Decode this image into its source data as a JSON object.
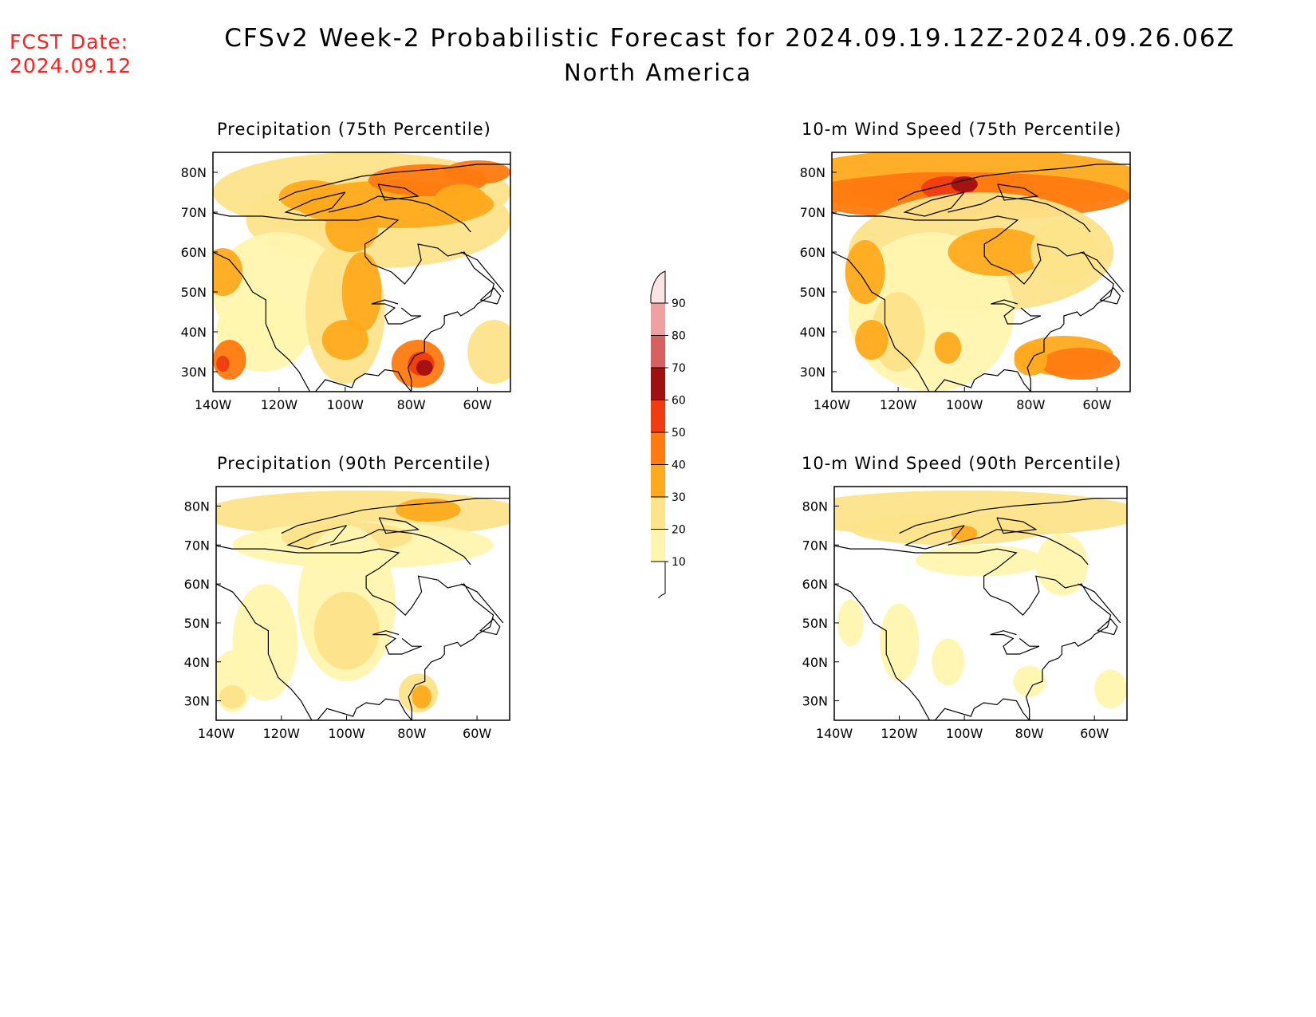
{
  "header": {
    "fcst_label": "FCST Date:",
    "fcst_date": "2024.09.12",
    "title": "CFSv2 Week-2 Probabilistic Forecast for 2024.09.19.12Z-2024.09.26.06Z",
    "subtitle": "North America"
  },
  "colors": {
    "fcst": "#ff2020",
    "c10": "#fff5b0",
    "c20": "#fde38a",
    "c30": "#ffaa1e",
    "c40": "#ff7a10",
    "c50": "#f03c10",
    "c60": "#a01010",
    "c70": "#d86060",
    "c80": "#f0a0a0",
    "c90": "#fce4e4"
  },
  "map_axes": {
    "x_ticks": [
      "140W",
      "120W",
      "100W",
      "80W",
      "60W"
    ],
    "y_ticks": [
      "80N",
      "70N",
      "60N",
      "50N",
      "40N",
      "30N"
    ]
  },
  "panels": [
    {
      "id": "precip75",
      "title": "Precipitation (75th Percentile)"
    },
    {
      "id": "wind75",
      "title": "10-m Wind Speed (75th Percentile)"
    },
    {
      "id": "precip90",
      "title": "Precipitation (90th Percentile)"
    },
    {
      "id": "wind90",
      "title": "10-m Wind Speed (90th Percentile)"
    }
  ],
  "colorbar": {
    "levels": [
      "10",
      "20",
      "30",
      "40",
      "50",
      "60",
      "70",
      "80",
      "90"
    ]
  }
}
